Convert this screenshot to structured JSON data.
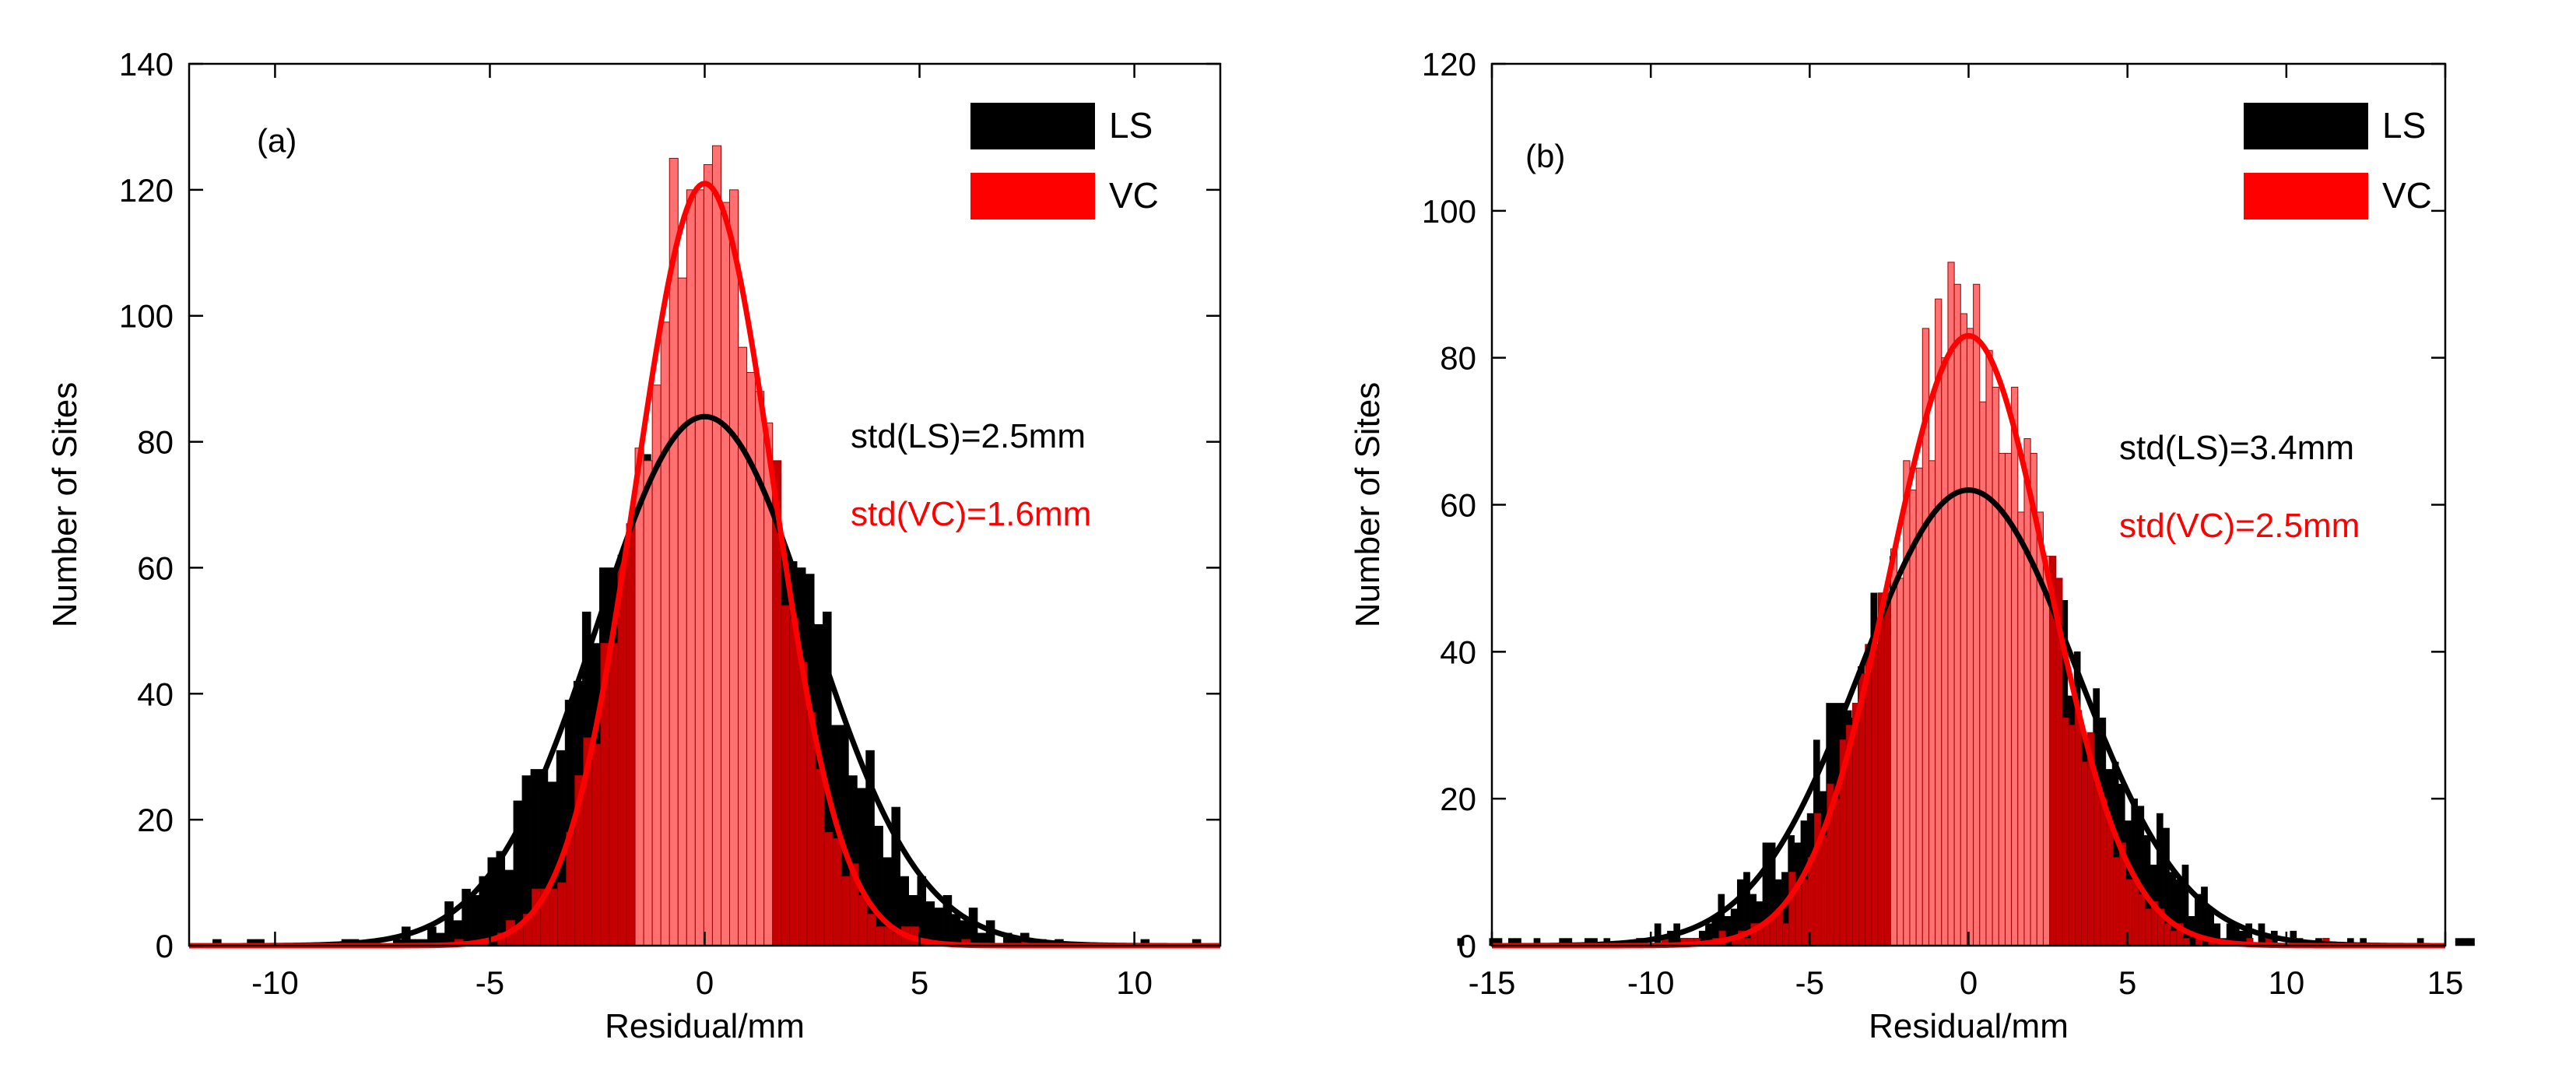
{
  "chart_data": [
    {
      "panel": "a",
      "type": "histogram",
      "panel_label": "(a)",
      "xlabel": "Residual/mm",
      "ylabel": "Number of Sites",
      "xlim": [
        -12,
        12
      ],
      "ylim": [
        0,
        140
      ],
      "xticks": [
        -10,
        -5,
        0,
        5,
        10
      ],
      "yticks": [
        0,
        20,
        40,
        60,
        80,
        100,
        120,
        140
      ],
      "bin_width": 0.2,
      "legend": [
        {
          "name": "LS",
          "color": "#000000"
        },
        {
          "name": "VC",
          "color": "#ff0000"
        }
      ],
      "annotations": [
        {
          "text": "std(LS)=2.5mm",
          "color": "#000000"
        },
        {
          "text": "std(VC)=1.6mm",
          "color": "#ff0000"
        }
      ],
      "series": [
        {
          "name": "LS",
          "color": "#000000",
          "fit_peak": 84,
          "fit_std": 2.5,
          "seed": 11
        },
        {
          "name": "VC",
          "color": "#ff0000",
          "fit_peak": 121,
          "fit_std": 1.6,
          "seed": 29
        }
      ]
    },
    {
      "panel": "b",
      "type": "histogram",
      "panel_label": "(b)",
      "xlabel": "Residual/mm",
      "ylabel": "Number of Sites",
      "xlim": [
        -15,
        15
      ],
      "ylim": [
        0,
        120
      ],
      "xticks": [
        -15,
        -10,
        -5,
        0,
        5,
        10,
        15
      ],
      "yticks": [
        0,
        20,
        40,
        60,
        80,
        100,
        120
      ],
      "bin_width": 0.2,
      "legend": [
        {
          "name": "LS",
          "color": "#000000"
        },
        {
          "name": "VC",
          "color": "#ff0000"
        }
      ],
      "annotations": [
        {
          "text": "std(LS)=3.4mm",
          "color": "#000000"
        },
        {
          "text": "std(VC)=2.5mm",
          "color": "#ff0000"
        }
      ],
      "series": [
        {
          "name": "LS",
          "color": "#000000",
          "fit_peak": 62,
          "fit_std": 3.4,
          "seed": 47
        },
        {
          "name": "VC",
          "color": "#ff0000",
          "fit_peak": 83,
          "fit_std": 2.5,
          "seed": 83
        }
      ]
    }
  ]
}
